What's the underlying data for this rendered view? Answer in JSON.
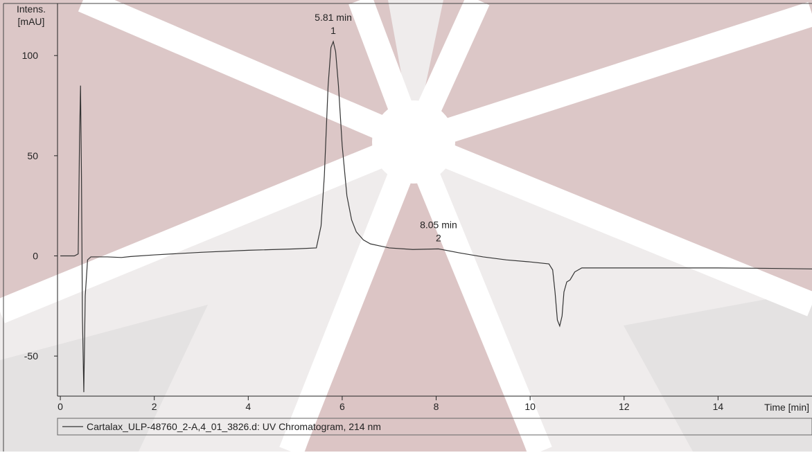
{
  "chart_data": {
    "type": "line",
    "ylabel": [
      "Intens.",
      "[mAU]"
    ],
    "xlabel": "Time [min]",
    "x": [
      0,
      0.3,
      0.38,
      0.41,
      0.43,
      0.45,
      0.47,
      0.5,
      0.53,
      0.58,
      0.65,
      0.8,
      1.0,
      1.3,
      1.5,
      2.0,
      3.0,
      4.0,
      5.0,
      5.45,
      5.55,
      5.62,
      5.7,
      5.76,
      5.81,
      5.86,
      5.92,
      6.0,
      6.1,
      6.2,
      6.3,
      6.45,
      6.6,
      6.8,
      7.0,
      7.5,
      8.05,
      8.5,
      9.0,
      9.5,
      10.0,
      10.4,
      10.48,
      10.53,
      10.58,
      10.63,
      10.68,
      10.72,
      10.78,
      10.85,
      10.95,
      11.1,
      11.4,
      12.0,
      13.0,
      14.0,
      15.0,
      16.0
    ],
    "series": [
      {
        "name": "Cartalax_ULP-48760_2-A,4_01_3826.d: UV Chromatogram, 214 nm",
        "color": "#333333",
        "values": [
          0,
          0,
          1,
          60,
          85,
          40,
          -30,
          -68,
          -20,
          -2,
          -0.5,
          -0.5,
          -0.5,
          -0.8,
          -0.3,
          0.5,
          1.8,
          2.8,
          3.5,
          4,
          15,
          40,
          85,
          104,
          107,
          102,
          85,
          55,
          30,
          18,
          12,
          8,
          6,
          5,
          4,
          3.2,
          3.5,
          1.5,
          -0.5,
          -2,
          -3,
          -4,
          -7,
          -18,
          -32,
          -35,
          -30,
          -18,
          -13,
          -12,
          -8,
          -6,
          -6,
          -6,
          -6,
          -6,
          -6.2,
          -6.5
        ]
      }
    ],
    "annotations": [
      {
        "label": "5.81 min",
        "sublabel": "1",
        "x": 5.81,
        "y": 107
      },
      {
        "label": "8.05 min",
        "sublabel": "2",
        "x": 8.05,
        "y": 3.5
      }
    ],
    "xlim": [
      -0.06,
      16.0
    ],
    "ylim": [
      -70,
      126
    ],
    "xticks": [
      0,
      2,
      4,
      6,
      8,
      10,
      12,
      14
    ],
    "yticks": [
      -50,
      0,
      50,
      100
    ]
  }
}
